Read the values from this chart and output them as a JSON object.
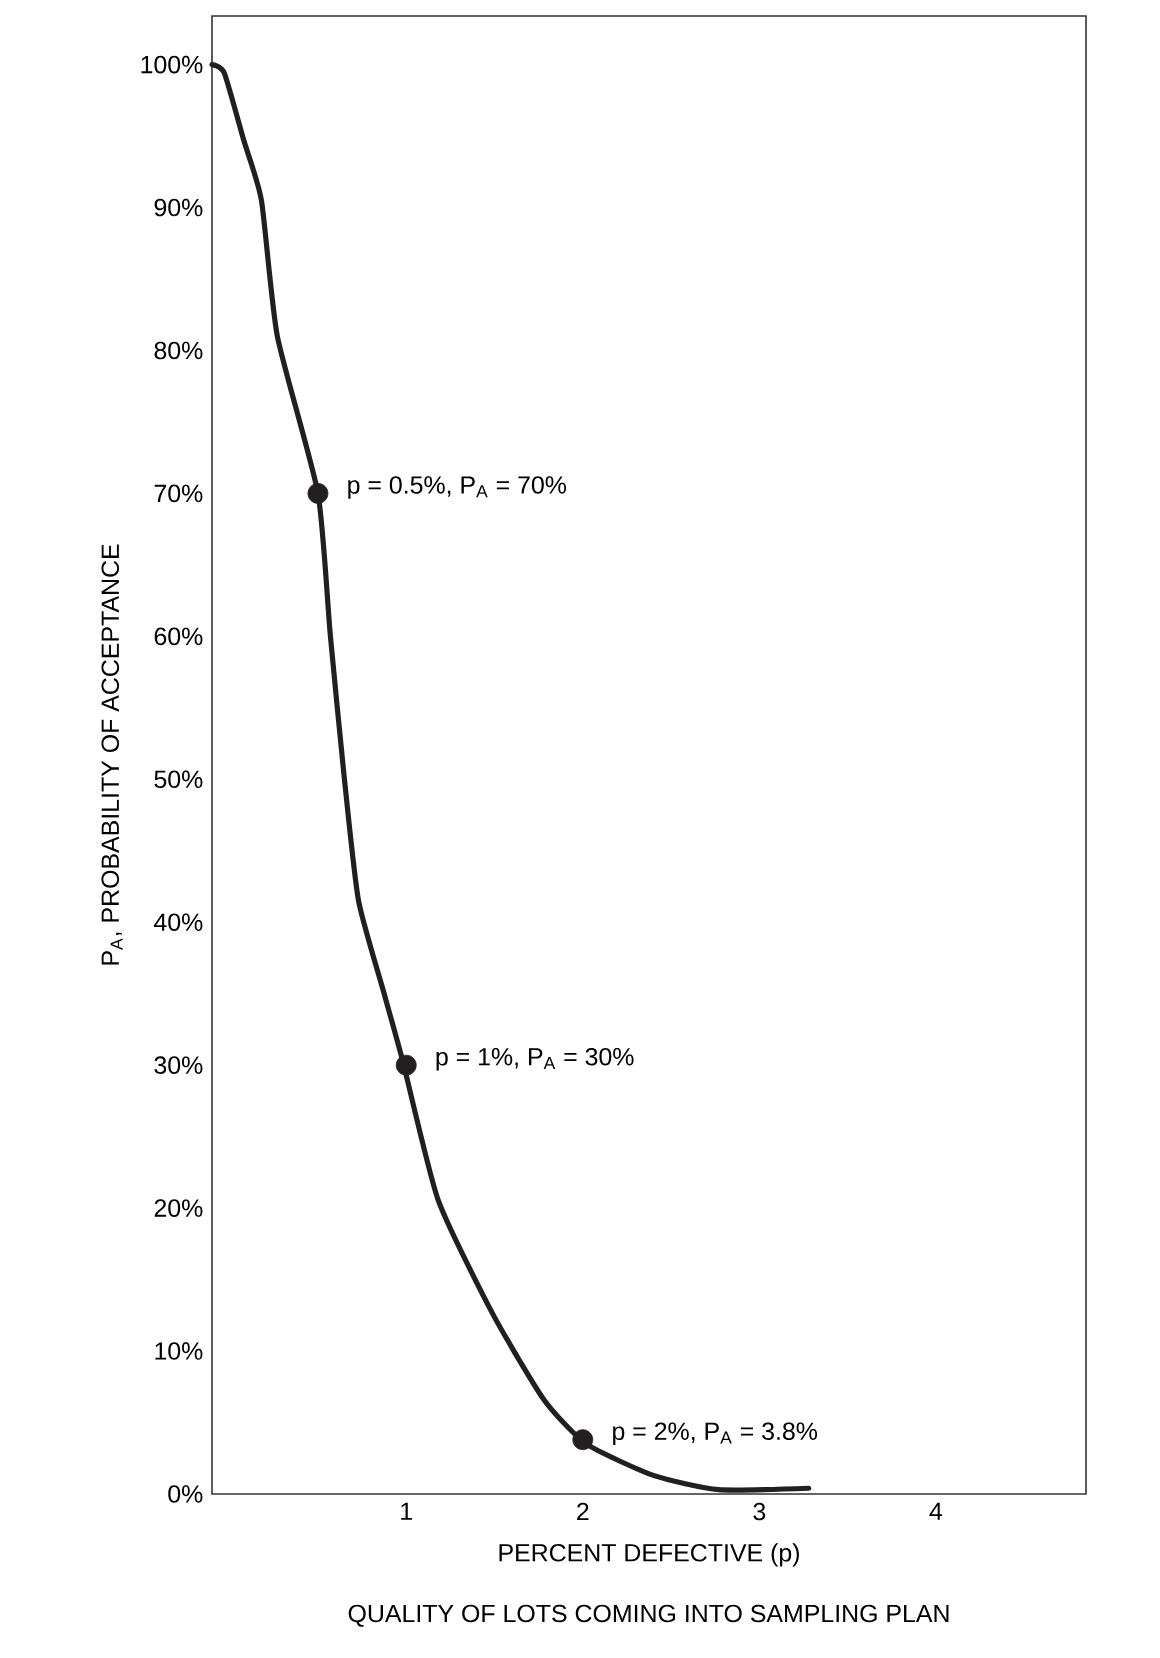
{
  "chart_data": {
    "type": "line",
    "xlabel": "PERCENT DEFECTIVE (p)",
    "ylabel": "P$_{A}$, PROBABILITY OF ACCEPTANCE",
    "xlim": [
      -0.1,
      4.85
    ],
    "xticks": [
      1,
      2,
      3,
      4
    ],
    "ylim": [
      0,
      103.4
    ],
    "yticks": [
      {
        "value": 0,
        "label": "0%"
      },
      {
        "value": 10,
        "label": "10%"
      },
      {
        "value": 20,
        "label": "20%"
      },
      {
        "value": 30,
        "label": "30%"
      },
      {
        "value": 40,
        "label": "40%"
      },
      {
        "value": 50,
        "label": "50%"
      },
      {
        "value": 60,
        "label": "60%"
      },
      {
        "value": 70,
        "label": "70%"
      },
      {
        "value": 80,
        "label": "80%"
      },
      {
        "value": 90,
        "label": "90%"
      },
      {
        "value": 100,
        "label": "100%"
      }
    ],
    "series": [
      {
        "type": "line",
        "color": "#231f20",
        "marker": "none",
        "line_style": "solid",
        "x": [
          -0.1,
          -0.03,
          0.08,
          0.18,
          0.27,
          0.5,
          0.57,
          0.65,
          0.73,
          0.875,
          0.98,
          1.18,
          1.49,
          1.78,
          2.02,
          2.4,
          2.77,
          3.28
        ],
        "values": [
          100,
          99.4,
          94.7,
          90.5,
          81,
          70,
          60.1,
          50,
          41.5,
          35,
          30.3,
          20.6,
          12.6,
          6.6,
          3.5,
          1.3,
          0.3,
          0.4
        ]
      },
      {
        "type": "scatter",
        "color": "#231f20",
        "marker": "circle",
        "x": [
          0.5,
          1,
          2
        ],
        "values": [
          70,
          30,
          3.8
        ]
      }
    ],
    "annotations": [
      {
        "text": "p = 0.5%, P$_{A}$ = 70%",
        "x": 0.5,
        "y": 70
      },
      {
        "text": "p = 1%, P$_{A}$ = 30%",
        "x": 1,
        "y": 30
      },
      {
        "text": "p = 2%, P$_{A}$ = 3.8%",
        "x": 2,
        "y": 3.8
      },
      "QUALITY OF LOTS COMING INTO SAMPLING PLAN"
    ]
  }
}
